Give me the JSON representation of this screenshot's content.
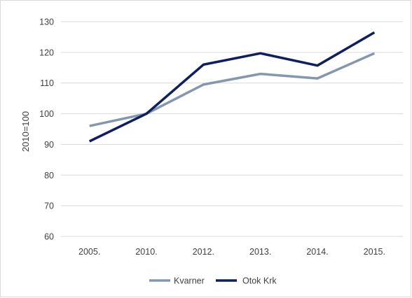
{
  "chart_data": {
    "type": "line",
    "title": "",
    "xlabel": "",
    "ylabel": "2010=100",
    "categories": [
      "2005.",
      "2010.",
      "2012.",
      "2013.",
      "2014.",
      "2015."
    ],
    "ylim": [
      60,
      130
    ],
    "yticks": [
      60,
      70,
      80,
      90,
      100,
      110,
      120,
      130
    ],
    "grid": "horizontal",
    "legend_position": "bottom",
    "series": [
      {
        "name": "Kvarner",
        "color": "#8497b0",
        "values": [
          96,
          100,
          109.5,
          113,
          111.5,
          119.7
        ]
      },
      {
        "name": "Otok Krk",
        "color": "#0d1f5c",
        "values": [
          91,
          100,
          116,
          119.7,
          115.7,
          126.5
        ]
      }
    ]
  }
}
